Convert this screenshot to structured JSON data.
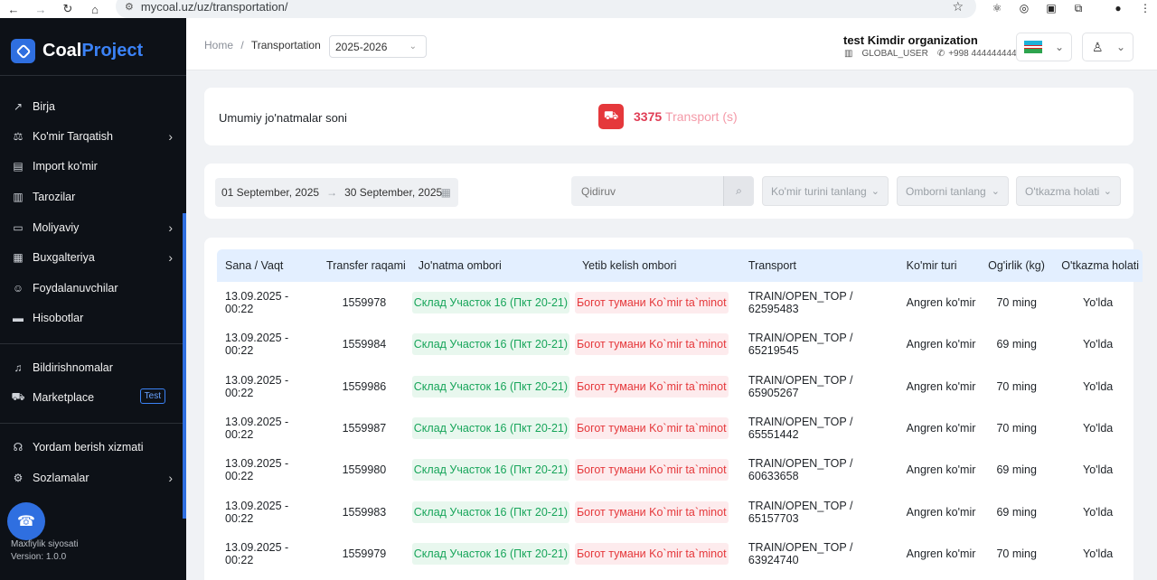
{
  "browser": {
    "url": "mycoal.uz/uz/transportation/"
  },
  "sidebar": {
    "logo_part1": "Coal",
    "logo_part2": "Project",
    "items": [
      {
        "label": "Birja",
        "icon": "trend-up-icon"
      },
      {
        "label": "Ko'mir Tarqatish",
        "icon": "distribution-icon",
        "has_submenu": true
      },
      {
        "label": "Import ko'mir",
        "icon": "import-icon"
      },
      {
        "label": "Tarozilar",
        "icon": "scale-icon"
      },
      {
        "label": "Moliyaviy",
        "icon": "wallet-icon",
        "has_submenu": true
      },
      {
        "label": "Buxgalteriya",
        "icon": "calculator-icon",
        "has_submenu": true
      },
      {
        "label": "Foydalanuvchilar",
        "icon": "users-icon"
      },
      {
        "label": "Hisobotlar",
        "icon": "report-icon"
      },
      {
        "label": "Bildirishnomalar",
        "icon": "bell-icon"
      },
      {
        "label": "Marketplace",
        "icon": "cart-icon",
        "badge": "Test"
      },
      {
        "label": "Yordam berish xizmati",
        "icon": "headset-icon"
      },
      {
        "label": "Sozlamalar",
        "icon": "gear-icon",
        "has_submenu": true
      }
    ],
    "privacy_link": "Maxfiylik siyosati",
    "version": "Version: 1.0.0"
  },
  "header": {
    "breadcrumb_home": "Home",
    "breadcrumb_sep": "/",
    "breadcrumb_current": "Transportation",
    "year": "2025-2026",
    "org_name": "test Kimdir organization",
    "role": "GLOBAL_USER",
    "phone": "+998 444444444"
  },
  "stats": {
    "label": "Umumiy jo'natmalar soni",
    "count": "3375",
    "unit": "Transport (s)"
  },
  "filters": {
    "date_from": "01 September, 2025",
    "date_to": "30 September, 2025",
    "search_placeholder": "Qidiruv",
    "coal_type_placeholder": "Ko'mir turini tanlang",
    "warehouse_placeholder": "Omborni tanlang",
    "transfer_status_placeholder": "O'tkazma holati"
  },
  "table": {
    "columns": [
      "Sana / Vaqt",
      "Transfer raqami",
      "Jo'natma ombori",
      "Yetib kelish ombori",
      "Transport",
      "Ko'mir turi",
      "Og'irlik (kg)",
      "O'tkazma holati"
    ],
    "rows": [
      {
        "date": "13.09.2025 - 00:22",
        "transfer": "1559978",
        "from": "Склад Участок 16 (Пкт 20-21)",
        "to": "Богот тумани Ko`mir ta`minot",
        "transport": "TRAIN/OPEN_TOP / 62595483",
        "coal": "Angren ko'mir",
        "weight": "70 ming",
        "status": "Yo'lda"
      },
      {
        "date": "13.09.2025 - 00:22",
        "transfer": "1559984",
        "from": "Склад Участок 16 (Пкт 20-21)",
        "to": "Богот тумани Ko`mir ta`minot",
        "transport": "TRAIN/OPEN_TOP / 65219545",
        "coal": "Angren ko'mir",
        "weight": "69 ming",
        "status": "Yo'lda"
      },
      {
        "date": "13.09.2025 - 00:22",
        "transfer": "1559986",
        "from": "Склад Участок 16 (Пкт 20-21)",
        "to": "Богот тумани Ko`mir ta`minot",
        "transport": "TRAIN/OPEN_TOP / 65905267",
        "coal": "Angren ko'mir",
        "weight": "70 ming",
        "status": "Yo'lda"
      },
      {
        "date": "13.09.2025 - 00:22",
        "transfer": "1559987",
        "from": "Склад Участок 16 (Пкт 20-21)",
        "to": "Богот тумани Ko`mir ta`minot",
        "transport": "TRAIN/OPEN_TOP / 65551442",
        "coal": "Angren ko'mir",
        "weight": "70 ming",
        "status": "Yo'lda"
      },
      {
        "date": "13.09.2025 - 00:22",
        "transfer": "1559980",
        "from": "Склад Участок 16 (Пкт 20-21)",
        "to": "Богот тумани Ko`mir ta`minot",
        "transport": "TRAIN/OPEN_TOP / 60633658",
        "coal": "Angren ko'mir",
        "weight": "69 ming",
        "status": "Yo'lda"
      },
      {
        "date": "13.09.2025 - 00:22",
        "transfer": "1559983",
        "from": "Склад Участок 16 (Пкт 20-21)",
        "to": "Богот тумани Ko`mir ta`minot",
        "transport": "TRAIN/OPEN_TOP / 65157703",
        "coal": "Angren ko'mir",
        "weight": "69 ming",
        "status": "Yo'lda"
      },
      {
        "date": "13.09.2025 - 00:22",
        "transfer": "1559979",
        "from": "Склад Участок 16 (Пкт 20-21)",
        "to": "Богот тумани Ko`mir ta`minot",
        "transport": "TRAIN/OPEN_TOP / 63924740",
        "coal": "Angren ko'mir",
        "weight": "70 ming",
        "status": "Yo'lda"
      }
    ]
  },
  "colors": {
    "sidebar_bg": "#0d1117",
    "accent": "#2f6fe0",
    "header_row_bg": "#e3efff",
    "green_tag": "#17a55a",
    "red_tag": "#e5383b",
    "stat_value": "#e03e56"
  }
}
